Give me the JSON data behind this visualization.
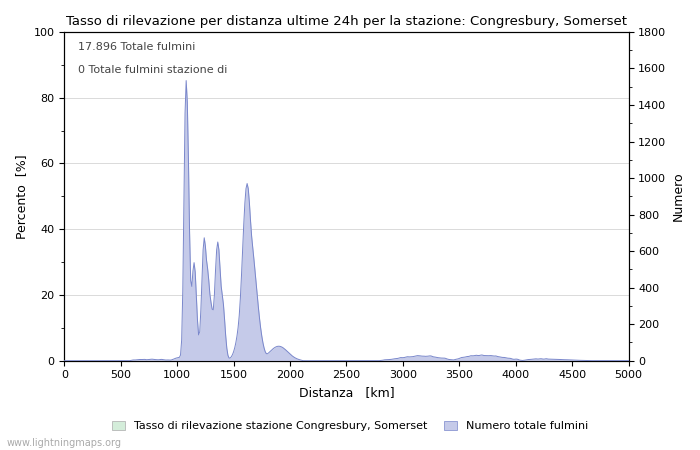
{
  "title": "Tasso di rilevazione per distanza ultime 24h per la stazione: Congresbury, Somerset",
  "xlabel": "Distanza   [km]",
  "ylabel_left": "Percento  [%]",
  "ylabel_right": "Numero",
  "annotation_line1": "17.896 Totale fulmini",
  "annotation_line2": "0 Totale fulmini stazione di",
  "legend_label1": "Tasso di rilevazione stazione Congresbury, Somerset",
  "legend_label2": "Numero totale fulmini",
  "watermark": "www.lightningmaps.org",
  "xlim": [
    0,
    5000
  ],
  "ylim_left": [
    0,
    100
  ],
  "ylim_right": [
    0,
    1800
  ],
  "xticks": [
    0,
    500,
    1000,
    1500,
    2000,
    2500,
    3000,
    3500,
    4000,
    4500,
    5000
  ],
  "yticks_left": [
    0,
    20,
    40,
    60,
    80,
    100
  ],
  "yticks_right": [
    0,
    200,
    400,
    600,
    800,
    1000,
    1200,
    1400,
    1600,
    1800
  ],
  "color_fill_green": "#d4edda",
  "color_fill_blue": "#c5cae9",
  "color_line_blue": "#7986cb",
  "background_color": "#ffffff",
  "grid_color": "#cccccc"
}
